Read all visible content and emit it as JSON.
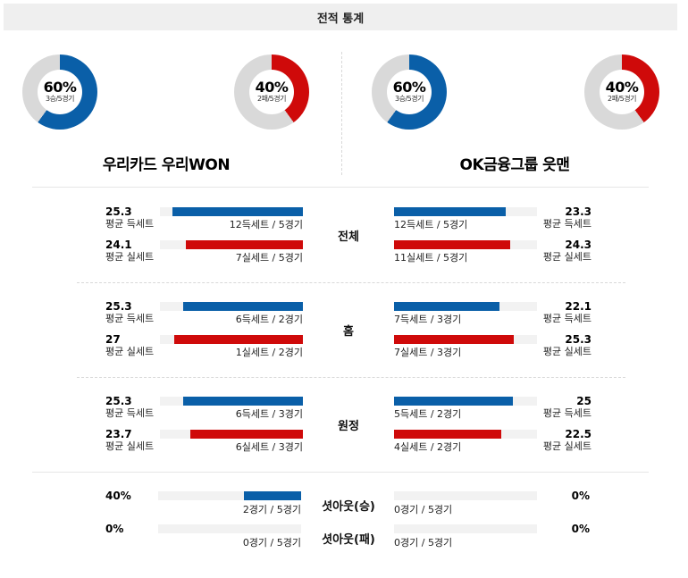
{
  "header": {
    "title": "전적 통계"
  },
  "colors": {
    "win": "#0a5fa8",
    "loss": "#cf0a0a",
    "empty": "#d9d9d9"
  },
  "teams": [
    {
      "name": "우리카드 우리WON",
      "donuts": [
        {
          "pct": "60%",
          "sub": "3승/5경기",
          "value": 0.6,
          "type": "win"
        },
        {
          "pct": "40%",
          "sub": "2패/5경기",
          "value": 0.4,
          "type": "loss"
        }
      ],
      "sections": [
        {
          "rows": [
            {
              "value": "25.3",
              "label": "평균 득세트",
              "caption": "12득세트 / 5경기",
              "fill": 0.91,
              "type": "win"
            },
            {
              "value": "24.1",
              "label": "평균 실세트",
              "caption": "7실세트 / 5경기",
              "fill": 0.82,
              "type": "loss"
            }
          ]
        },
        {
          "rows": [
            {
              "value": "25.3",
              "label": "평균 득세트",
              "caption": "6득세트 / 2경기",
              "fill": 0.84,
              "type": "win"
            },
            {
              "value": "27",
              "label": "평균 실세트",
              "caption": "1실세트 / 2경기",
              "fill": 0.9,
              "type": "loss"
            }
          ]
        },
        {
          "rows": [
            {
              "value": "25.3",
              "label": "평균 득세트",
              "caption": "6득세트 / 3경기",
              "fill": 0.84,
              "type": "win"
            },
            {
              "value": "23.7",
              "label": "평균 실세트",
              "caption": "6실세트 / 3경기",
              "fill": 0.79,
              "type": "loss"
            }
          ]
        }
      ],
      "shutouts": [
        {
          "value": "40%",
          "caption": "2경기 / 5경기",
          "fill": 0.4
        },
        {
          "value": "0%",
          "caption": "0경기 / 5경기",
          "fill": 0
        }
      ]
    },
    {
      "name": "OK금융그룹 읏맨",
      "donuts": [
        {
          "pct": "60%",
          "sub": "3승/5경기",
          "value": 0.6,
          "type": "win"
        },
        {
          "pct": "40%",
          "sub": "2패/5경기",
          "value": 0.4,
          "type": "loss"
        }
      ],
      "sections": [
        {
          "rows": [
            {
              "value": "23.3",
              "label": "평균 득세트",
              "caption": "12득세트 / 5경기",
              "fill": 0.78,
              "type": "win"
            },
            {
              "value": "24.3",
              "label": "평균 실세트",
              "caption": "11실세트 / 5경기",
              "fill": 0.81,
              "type": "loss"
            }
          ]
        },
        {
          "rows": [
            {
              "value": "22.1",
              "label": "평균 득세트",
              "caption": "7득세트 / 3경기",
              "fill": 0.74,
              "type": "win"
            },
            {
              "value": "25.3",
              "label": "평균 실세트",
              "caption": "7실세트 / 3경기",
              "fill": 0.84,
              "type": "loss"
            }
          ]
        },
        {
          "rows": [
            {
              "value": "25",
              "label": "평균 득세트",
              "caption": "5득세트 / 2경기",
              "fill": 0.83,
              "type": "win"
            },
            {
              "value": "22.5",
              "label": "평균 실세트",
              "caption": "4실세트 / 2경기",
              "fill": 0.75,
              "type": "loss"
            }
          ]
        }
      ],
      "shutouts": [
        {
          "value": "0%",
          "caption": "0경기 / 5경기",
          "fill": 0
        },
        {
          "value": "0%",
          "caption": "0경기 / 5경기",
          "fill": 0
        }
      ]
    }
  ],
  "categories": [
    "전체",
    "홈",
    "원정"
  ],
  "shutout_labels": [
    "셧아웃(승)",
    "셧아웃(패)"
  ]
}
